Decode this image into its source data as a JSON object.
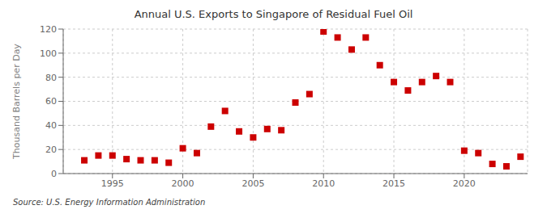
{
  "chart_data": {
    "type": "scatter",
    "title": "Annual U.S. Exports to Singapore of Residual Fuel Oil",
    "ylabel": "Thousand Barrels per Day",
    "annotations": [
      "Source: U.S. Energy Information Administration"
    ],
    "x": [
      1993,
      1994,
      1995,
      1996,
      1997,
      1998,
      1999,
      2000,
      2001,
      2002,
      2003,
      2004,
      2005,
      2006,
      2007,
      2008,
      2009,
      2010,
      2011,
      2012,
      2013,
      2014,
      2015,
      2016,
      2017,
      2018,
      2019,
      2020,
      2021,
      2022,
      2023,
      2024
    ],
    "values": [
      11,
      15,
      15,
      12,
      11,
      11,
      9,
      21,
      17,
      39,
      52,
      35,
      30,
      37,
      36,
      59,
      66,
      118,
      113,
      103,
      113,
      90,
      76,
      69,
      76,
      81,
      76,
      19,
      17,
      8,
      6,
      14
    ],
    "color": "#cc0000",
    "marker": "square",
    "xlim": [
      1991.5,
      2024.5
    ],
    "xticks": [
      1995,
      2000,
      2005,
      2010,
      2015,
      2020
    ],
    "ylim": [
      0,
      120
    ],
    "yticks": [
      0,
      20,
      40,
      60,
      80,
      100,
      120
    ],
    "grid": true
  }
}
